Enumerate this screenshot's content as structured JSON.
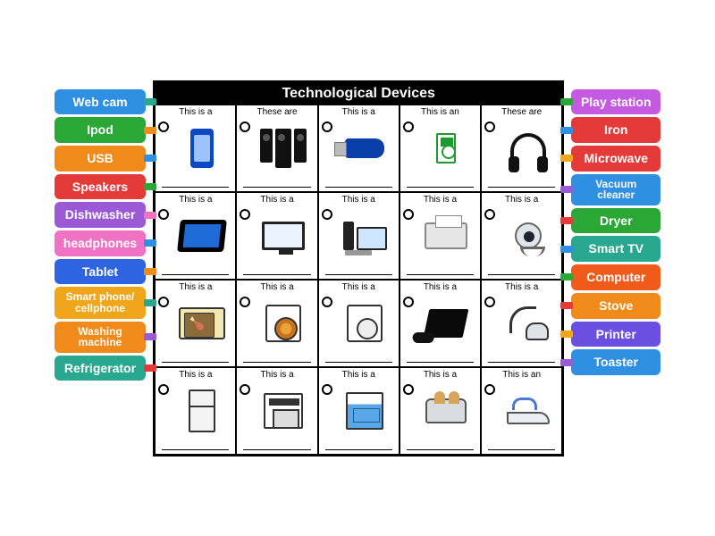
{
  "title": "Technological Devices",
  "colors": {
    "blue": "#2f8fe0",
    "green": "#2aa737",
    "orange": "#f08a1a",
    "red": "#e43a3a",
    "purple": "#9b59d6",
    "pink": "#f072c4",
    "teal": "#2aa78f",
    "gold": "#f0a61a",
    "orangered": "#f05a1a"
  },
  "left_labels": [
    {
      "text": "Web cam",
      "bg": "#2f8fe0",
      "peg": "#2aa78f"
    },
    {
      "text": "Ipod",
      "bg": "#2aa737",
      "peg": "#f08a1a"
    },
    {
      "text": "USB",
      "bg": "#f08a1a",
      "peg": "#2f8fe0"
    },
    {
      "text": "Speakers",
      "bg": "#e43a3a",
      "peg": "#2aa737"
    },
    {
      "text": "Dishwasher",
      "bg": "#9b59d6",
      "peg": "#f072c4"
    },
    {
      "text": "headphones",
      "bg": "#f072c4",
      "peg": "#2f8fe0"
    },
    {
      "text": "Tablet",
      "bg": "#2f64e0",
      "peg": "#f08a1a"
    },
    {
      "text": "Smart phone/\ncellphone",
      "bg": "#f0a61a",
      "peg": "#2aa78f",
      "small": true
    },
    {
      "text": "Washing\nmachine",
      "bg": "#f08a1a",
      "peg": "#9b59d6",
      "small": true
    },
    {
      "text": "Refrigerator",
      "bg": "#2aa78f",
      "peg": "#e43a3a"
    }
  ],
  "right_labels": [
    {
      "text": "Play station",
      "bg": "#c45ae0",
      "peg": "#2aa737"
    },
    {
      "text": "Iron",
      "bg": "#e43a3a",
      "peg": "#2f8fe0"
    },
    {
      "text": "Microwave",
      "bg": "#e43a3a",
      "peg": "#f0a61a"
    },
    {
      "text": "Vacuum\ncleaner",
      "bg": "#2f8fe0",
      "peg": "#9b59d6",
      "small": true
    },
    {
      "text": "Dryer",
      "bg": "#2aa737",
      "peg": "#e43a3a"
    },
    {
      "text": "Smart TV",
      "bg": "#2aa78f",
      "peg": "#2f8fe0"
    },
    {
      "text": "Computer",
      "bg": "#f05a1a",
      "peg": "#2aa737"
    },
    {
      "text": "Stove",
      "bg": "#f08a1a",
      "peg": "#e43a3a"
    },
    {
      "text": "Printer",
      "bg": "#6a4fe0",
      "peg": "#f0a61a"
    },
    {
      "text": "Toaster",
      "bg": "#2f8fe0",
      "peg": "#9b59d6"
    }
  ],
  "grid": {
    "rows": 4,
    "cols": 5,
    "cells": [
      [
        {
          "hdr": "This is a",
          "icon": "phone"
        },
        {
          "hdr": "These are",
          "icon": "spk3"
        },
        {
          "hdr": "This is a",
          "icon": "usb"
        },
        {
          "hdr": "This is an",
          "icon": "ipod"
        },
        {
          "hdr": "These are",
          "icon": "hp"
        }
      ],
      [
        {
          "hdr": "This is a",
          "icon": "tablet"
        },
        {
          "hdr": "This is a",
          "icon": "monitor"
        },
        {
          "hdr": "This is a",
          "icon": "pcset"
        },
        {
          "hdr": "This is a",
          "icon": "printer"
        },
        {
          "hdr": "This is a",
          "icon": "webcam"
        }
      ],
      [
        {
          "hdr": "This is a",
          "icon": "microwave"
        },
        {
          "hdr": "This is a",
          "icon": "washer"
        },
        {
          "hdr": "This is a",
          "icon": "dryer"
        },
        {
          "hdr": "This is a",
          "icon": "ps"
        },
        {
          "hdr": "This is a",
          "icon": "vac"
        }
      ],
      [
        {
          "hdr": "This is a",
          "icon": "fridge"
        },
        {
          "hdr": "This is a",
          "icon": "stove"
        },
        {
          "hdr": "This is a",
          "icon": "dishw"
        },
        {
          "hdr": "This is a",
          "icon": "toaster"
        },
        {
          "hdr": "This is an",
          "icon": "iron"
        }
      ]
    ]
  }
}
